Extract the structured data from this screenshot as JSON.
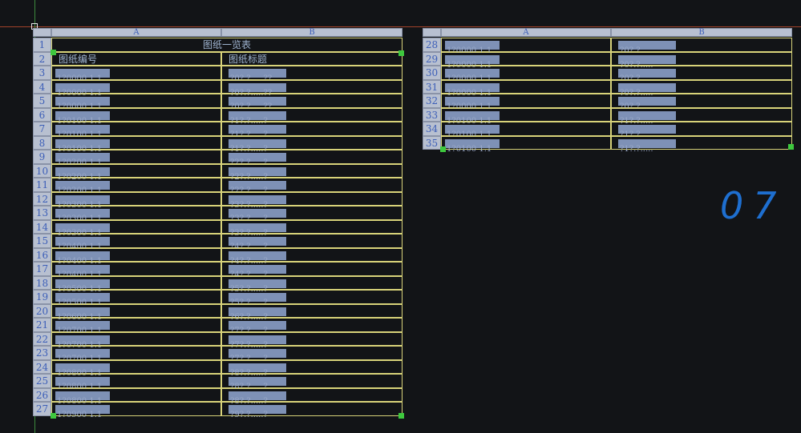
{
  "left_table": {
    "col_headers": [
      "A",
      "B"
    ],
    "title": "图纸一览表",
    "header_row": {
      "num": "2",
      "col_a": "图纸编号",
      "col_b": "图纸标题"
    },
    "title_row_num": "1",
    "data_rows": [
      {
        "num": "3",
        "a": "1?0000 1.1",
        "b": "?0?.?.....??"
      },
      {
        "num": "4",
        "a": "1?0000 1.1",
        "b": "?0?.?.....??"
      },
      {
        "num": "5",
        "a": "1?0000 1.1",
        "b": "?0?.?.....??"
      },
      {
        "num": "6",
        "a": "1?0100 1.1",
        "b": "?1?.?.....?"
      },
      {
        "num": "7",
        "a": "1?0100 1.1",
        "b": "?1?.?.....?"
      },
      {
        "num": "8",
        "a": "1?0100 1.1",
        "b": "?1?.?.....?"
      },
      {
        "num": "9",
        "a": "1?0200 1.1",
        "b": "?2?.?.....?"
      },
      {
        "num": "10",
        "a": "1?0200 1.1",
        "b": "?2?.?.....?"
      },
      {
        "num": "11",
        "a": "1?0200 1.1",
        "b": "?2?.?.....?"
      },
      {
        "num": "12",
        "a": "1?0300 1.1",
        "b": "?3?.?.....?"
      },
      {
        "num": "13",
        "a": "1?0300 1.1",
        "b": "?3?.?.....?"
      },
      {
        "num": "14",
        "a": "1?0300 1.1",
        "b": "?3?.?.....?"
      },
      {
        "num": "15",
        "a": "1?0400 1.1",
        "b": "?4?.?.....?"
      },
      {
        "num": "16",
        "a": "1?0400 1.1",
        "b": "?4?.?.....?"
      },
      {
        "num": "17",
        "a": "1?0400 1.1",
        "b": "?4?.?.....?"
      },
      {
        "num": "18",
        "a": "1?0500 1.1",
        "b": "?5?.?.....?"
      },
      {
        "num": "19",
        "a": "1?0500 1.1",
        "b": "?5?.?.....?"
      },
      {
        "num": "20",
        "a": "1?0600 1.1",
        "b": "?6?.?.....?"
      },
      {
        "num": "21",
        "a": "1?0700 1.1",
        "b": "?7?.?.....?"
      },
      {
        "num": "22",
        "a": "1?0700 1.1",
        "b": "?7?.?.....?"
      },
      {
        "num": "23",
        "a": "1?0700 1.1",
        "b": "?7?.?.....?"
      },
      {
        "num": "24",
        "a": "1?0800 1.1",
        "b": "?8?.?.....?"
      },
      {
        "num": "25",
        "a": "1?0800 1.1",
        "b": "?8?.?.....?"
      },
      {
        "num": "26",
        "a": "1?0800 1.1",
        "b": "?8?.?.....?"
      },
      {
        "num": "27",
        "a": "1?0900 1.1",
        "b": "?9?.?.....?"
      }
    ]
  },
  "right_table": {
    "col_headers": [
      "A",
      "B"
    ],
    "data_rows": [
      {
        "num": "28",
        "a": "1?0000 1.1",
        "b": "?0?.?....."
      },
      {
        "num": "29",
        "a": "1?0000 1.1",
        "b": "?0?.?....."
      },
      {
        "num": "30",
        "a": "1?0000 1.1",
        "b": "?0?.?....."
      },
      {
        "num": "31",
        "a": "1?0000 1.1",
        "b": "?0?.?....."
      },
      {
        "num": "32",
        "a": "1?0000 1.1",
        "b": "?0?.?....."
      },
      {
        "num": "33",
        "a": "1?0100 1.1",
        "b": "?1?.?....."
      },
      {
        "num": "34",
        "a": "1?0100 1.1",
        "b": "?1?.?....."
      },
      {
        "num": "35",
        "a": "1?0100 1.1",
        "b": "?1?.?....."
      }
    ]
  },
  "annotation": "07",
  "colors": {
    "background": "#121417",
    "grid_line": "#d8d37a",
    "grip": "#3ec83e",
    "header_fill": "#b8c0d0",
    "annotation": "#1e6fd0"
  }
}
